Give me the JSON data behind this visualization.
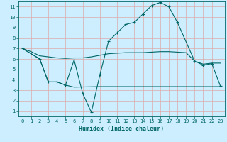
{
  "xlabel": "Humidex (Indice chaleur)",
  "bg_color": "#cceeff",
  "grid_color": "#ddaaaa",
  "line_color": "#006666",
  "xlim": [
    -0.5,
    23.5
  ],
  "ylim": [
    0.5,
    11.5
  ],
  "xticks": [
    0,
    1,
    2,
    3,
    4,
    5,
    6,
    7,
    8,
    9,
    10,
    11,
    12,
    13,
    14,
    15,
    16,
    17,
    18,
    19,
    20,
    21,
    22,
    23
  ],
  "yticks": [
    1,
    2,
    3,
    4,
    5,
    6,
    7,
    8,
    9,
    10,
    11
  ],
  "line1_x": [
    0,
    1,
    2,
    3,
    4,
    5,
    6,
    7,
    8,
    9,
    10,
    11,
    12,
    13,
    14,
    15,
    16,
    17,
    18,
    19,
    20,
    21,
    22,
    23
  ],
  "line1_y": [
    7.0,
    6.7,
    6.3,
    6.2,
    6.1,
    6.05,
    6.1,
    6.1,
    6.2,
    6.35,
    6.5,
    6.55,
    6.6,
    6.6,
    6.6,
    6.65,
    6.7,
    6.7,
    6.65,
    6.6,
    5.8,
    5.5,
    5.6,
    5.6
  ],
  "line2_x": [
    0,
    2,
    3,
    4,
    5,
    6,
    7,
    8,
    9,
    10,
    11,
    12,
    13,
    14,
    15,
    16,
    17,
    18,
    20,
    21,
    22,
    23
  ],
  "line2_y": [
    7.0,
    6.0,
    3.8,
    3.8,
    3.5,
    5.9,
    2.7,
    0.9,
    4.5,
    7.7,
    8.5,
    9.3,
    9.5,
    10.3,
    11.1,
    11.4,
    11.0,
    9.5,
    5.8,
    5.4,
    5.55,
    3.4
  ],
  "line3_x": [
    0,
    2,
    3,
    4,
    5,
    6,
    9,
    10,
    11,
    12,
    13,
    14,
    15,
    16,
    17,
    18,
    19,
    20,
    21,
    22,
    23
  ],
  "line3_y": [
    7.0,
    6.0,
    3.8,
    3.8,
    3.5,
    3.3,
    3.35,
    3.35,
    3.35,
    3.35,
    3.35,
    3.35,
    3.35,
    3.35,
    3.35,
    3.35,
    3.35,
    3.35,
    3.35,
    3.35,
    3.35
  ]
}
